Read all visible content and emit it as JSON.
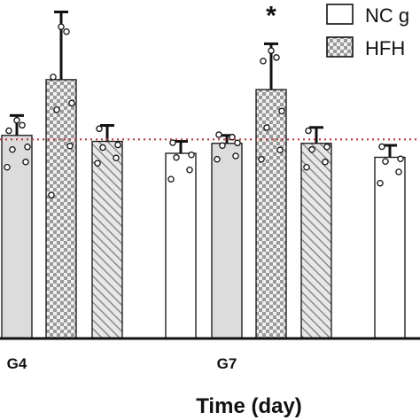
{
  "chart_data": {
    "type": "bar",
    "title": "",
    "xlabel": "Time (day)",
    "ylabel": "",
    "ylim": [
      0,
      1.7
    ],
    "reference_line": {
      "y": 1.0,
      "color": "#c0392b",
      "style": "dotted"
    },
    "legend": {
      "placement": "top-right",
      "entries": [
        {
          "label": "NC g",
          "pattern": "white"
        },
        {
          "label": "HFH",
          "pattern": "checker"
        }
      ]
    },
    "groups": [
      {
        "label": "G4",
        "bars": [
          {
            "series": "light-gray",
            "pattern": "gray",
            "value": 1.02,
            "err": 0.1,
            "points": [
              0.86,
              0.9,
              0.94,
              0.98,
              1.03,
              1.08,
              1.1
            ],
            "star": false
          },
          {
            "series": "checker",
            "pattern": "checker",
            "value": 1.3,
            "err": 0.34,
            "points": [
              0.72,
              0.98,
              1.14,
              1.2,
              1.3,
              1.55,
              1.57
            ],
            "star": true
          },
          {
            "series": "hatched",
            "pattern": "hatch",
            "value": 0.99,
            "err": 0.08,
            "points": [
              0.88,
              0.92,
              0.95,
              0.99,
              1.04
            ],
            "star": false
          }
        ]
      },
      {
        "label": "",
        "bars": [
          {
            "series": "white",
            "pattern": "white",
            "value": 0.93,
            "err": 0.06,
            "points": [
              0.8,
              0.86,
              0.9,
              0.94,
              0.97
            ],
            "star": false
          }
        ]
      },
      {
        "label": "G7",
        "bars": [
          {
            "series": "light-gray",
            "pattern": "gray",
            "value": 0.98,
            "err": 0.04,
            "points": [
              0.9,
              0.93,
              0.96,
              1.0,
              1.01,
              1.02
            ],
            "star": false
          },
          {
            "series": "checker",
            "pattern": "checker",
            "value": 1.25,
            "err": 0.23,
            "points": [
              0.9,
              0.96,
              1.05,
              1.16,
              1.38,
              1.42,
              1.45
            ],
            "star": true
          },
          {
            "series": "hatched",
            "pattern": "hatch",
            "value": 0.98,
            "err": 0.08,
            "points": [
              0.86,
              0.9,
              0.94,
              0.98,
              1.03
            ],
            "star": false
          }
        ]
      },
      {
        "label": "",
        "bars": [
          {
            "series": "white",
            "pattern": "white",
            "value": 0.91,
            "err": 0.06,
            "points": [
              0.78,
              0.85,
              0.88,
              0.92,
              0.95
            ],
            "star": false
          }
        ]
      }
    ]
  }
}
